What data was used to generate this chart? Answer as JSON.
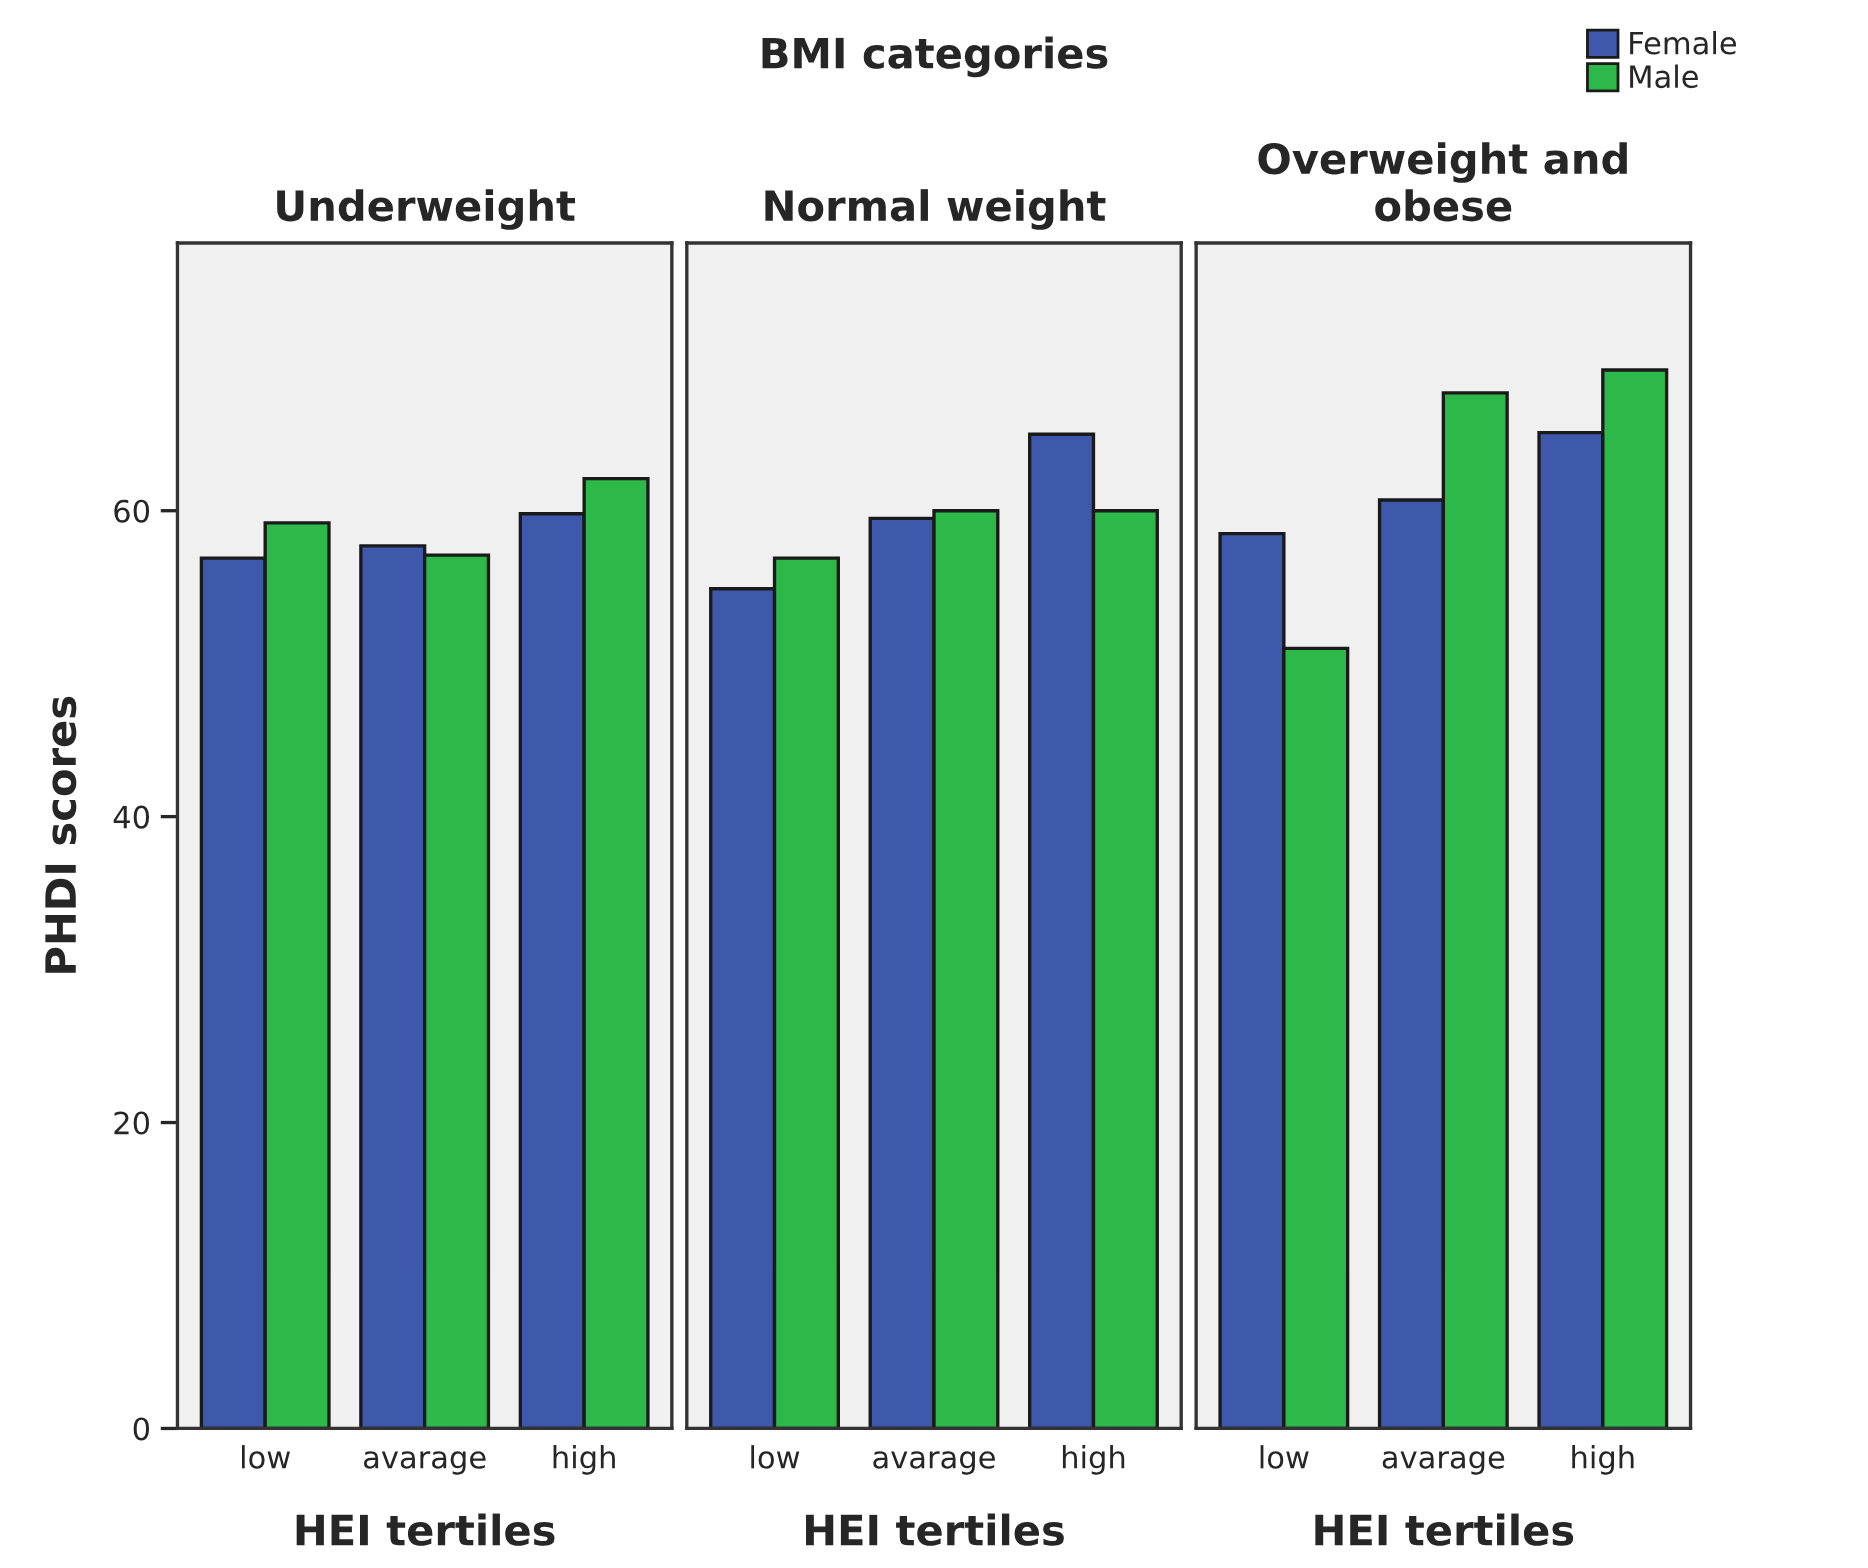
{
  "chart_data": [
    {
      "type": "bar",
      "subtitle": "Underweight",
      "xlabel": "HEI tertiles",
      "ylabel": "PHDI scores",
      "categories": [
        "low",
        "avarage",
        "high"
      ],
      "ylim": [
        0,
        77.5
      ],
      "yticks": [
        0,
        20,
        40,
        60
      ],
      "series": [
        {
          "color": "#3e58ac",
          "values": [
            56.9,
            57.7,
            59.8
          ]
        },
        {
          "color": "#2db84a",
          "values": [
            59.2,
            57.1,
            62.1
          ]
        }
      ]
    },
    {
      "type": "bar",
      "title": "BMI categories",
      "subtitle": "Normal weight",
      "xlabel": "HEI tertiles",
      "categories": [
        "low",
        "avarage",
        "high"
      ],
      "ylim": [
        0,
        77.5
      ],
      "yticks": [
        0,
        20,
        40,
        60
      ],
      "tick_labels": "x",
      "series": [
        {
          "color": "#3e58ac",
          "values": [
            54.9,
            59.5,
            65.0
          ]
        },
        {
          "color": "#2db84a",
          "values": [
            56.9,
            60.0,
            60.0
          ]
        }
      ]
    },
    {
      "type": "bar",
      "subtitle": "Overweight and\nobese",
      "xlabel": "HEI tertiles",
      "categories": [
        "low",
        "avarage",
        "high"
      ],
      "ylim": [
        0,
        77.5
      ],
      "yticks": [
        0,
        20,
        40,
        60
      ],
      "tick_labels": "x",
      "legend": "top right",
      "series": [
        {
          "name": "Female",
          "color": "#3e58ac",
          "values": [
            58.5,
            60.7,
            65.1
          ]
        },
        {
          "name": "Male",
          "color": "#2db84a",
          "values": [
            51.0,
            67.7,
            69.2
          ]
        }
      ]
    }
  ]
}
